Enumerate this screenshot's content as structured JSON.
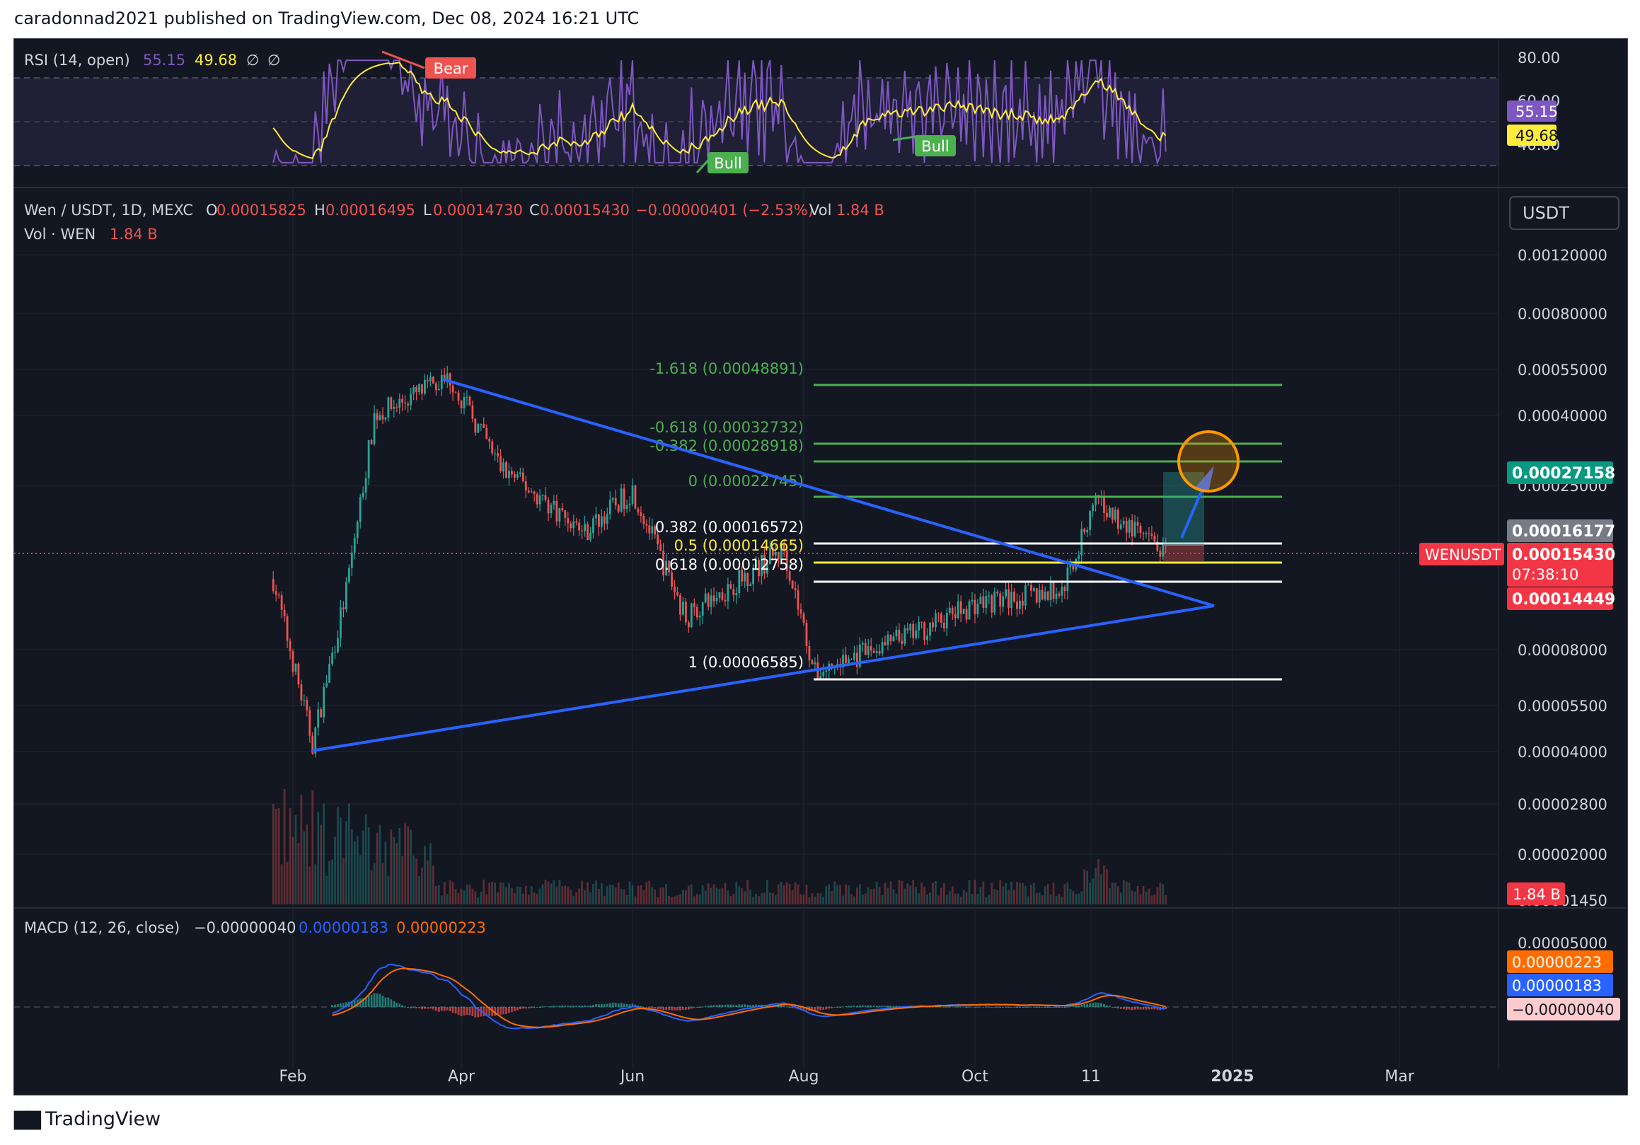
{
  "header": {
    "published": "caradonnad2021 published on TradingView.com, Dec 08, 2024 16:21 UTC"
  },
  "footer": {
    "brand": "TradingView"
  },
  "rsi": {
    "title": "RSI (14, open)",
    "value": "55.15",
    "ma": "49.68",
    "extra1": "∅",
    "extra2": "∅",
    "ticks": [
      "80.00",
      "60.00",
      "40.00"
    ],
    "badge_value": "55.15",
    "badge_ma": "49.68",
    "bear_label": "Bear",
    "bull_label_1": "Bull",
    "bull_label_2": "Bull",
    "colors": {
      "rsi": "#7e57c2",
      "ma": "#ffeb3b"
    }
  },
  "main": {
    "symbol": "Wen / USDT, 1D, MEXC",
    "o_label": "O",
    "o": "0.00015825",
    "h_label": "H",
    "h": "0.00016495",
    "l_label": "L",
    "l": "0.00014730",
    "c_label": "C",
    "c": "0.00015430",
    "change": "−0.00000401 (−2.53%)",
    "vol_label": "Vol",
    "vol": "1.84 B",
    "vol_line_label": "Vol · WEN",
    "vol_line_value": "1.84 B",
    "currency": "USDT",
    "price_ticks": [
      "0.00120000",
      "0.00080000",
      "0.00055000",
      "0.00040000",
      "0.00025000",
      "0.00008000",
      "0.00005500",
      "0.00004000",
      "0.00002800",
      "0.00002000",
      "0.00001450"
    ],
    "badges": {
      "target": "0.00027158",
      "gray": "0.00016177",
      "symbol_tag": "WENUSDT",
      "last": "0.00015430",
      "countdown": "07:38:10",
      "stop": "0.00014449",
      "volume": "1.84 B"
    },
    "fib": [
      {
        "label": "-1.618 (0.00048891)",
        "color": "#4caf50"
      },
      {
        "label": "-0.618 (0.00032732)",
        "color": "#4caf50"
      },
      {
        "label": "-0.382 (0.00028918)",
        "color": "#4caf50"
      },
      {
        "label": "0 (0.00022745)",
        "color": "#4caf50"
      },
      {
        "label": "0.382 (0.00016572)",
        "color": "#ffffff"
      },
      {
        "label": "0.5 (0.00014665)",
        "color": "#ffeb3b"
      },
      {
        "label": "0.618 (0.00012758)",
        "color": "#ffffff"
      },
      {
        "label": "1 (0.00006585)",
        "color": "#ffffff"
      }
    ],
    "colors": {
      "up": "#26a69a",
      "down": "#ef5350",
      "trendline": "#2962ff",
      "circle": "#ff9800"
    }
  },
  "macd": {
    "title": "MACD (12, 26, close)",
    "hist": "−0.00000040",
    "macd": "0.00000183",
    "signal": "0.00000223",
    "tick": "0.00005000",
    "badge_signal": "0.00000223",
    "badge_macd": "0.00000183",
    "badge_hist": "−0.00000040",
    "colors": {
      "macd": "#2962ff",
      "signal": "#ff6d00"
    }
  },
  "time_axis": [
    "Feb",
    "Apr",
    "Jun",
    "Aug",
    "Oct",
    "11",
    "2025",
    "Mar"
  ],
  "chart_data": {
    "type": "candlestick",
    "title": "Wen / USDT, 1D, MEXC",
    "annotations": [
      "symmetrical triangle",
      "fibonacci extension"
    ],
    "trendline_upper": [
      {
        "x": "2024-03-28",
        "y": 0.00053
      },
      {
        "x": "2024-12-18",
        "y": 0.00013
      }
    ],
    "trendline_lower": [
      {
        "x": "2024-02-08",
        "y": 4.1e-05
      },
      {
        "x": "2024-12-18",
        "y": 0.00013
      }
    ],
    "approx_close_path": [
      {
        "x": "2024-01-25",
        "y": 0.00013
      },
      {
        "x": "2024-02-08",
        "y": 4.2e-05
      },
      {
        "x": "2024-02-20",
        "y": 0.00012
      },
      {
        "x": "2024-03-01",
        "y": 0.0004
      },
      {
        "x": "2024-03-28",
        "y": 0.00052
      },
      {
        "x": "2024-04-15",
        "y": 0.00028
      },
      {
        "x": "2024-05-15",
        "y": 0.00018
      },
      {
        "x": "2024-06-01",
        "y": 0.00024
      },
      {
        "x": "2024-06-20",
        "y": 0.0001
      },
      {
        "x": "2024-07-25",
        "y": 0.00016
      },
      {
        "x": "2024-08-05",
        "y": 6.8e-05
      },
      {
        "x": "2024-09-10",
        "y": 9e-05
      },
      {
        "x": "2024-10-01",
        "y": 0.00011
      },
      {
        "x": "2024-11-01",
        "y": 0.00012
      },
      {
        "x": "2024-11-13",
        "y": 0.00022
      },
      {
        "x": "2024-12-08",
        "y": 0.0001543
      }
    ],
    "last_close": 0.0001543,
    "target": 0.00027158
  }
}
